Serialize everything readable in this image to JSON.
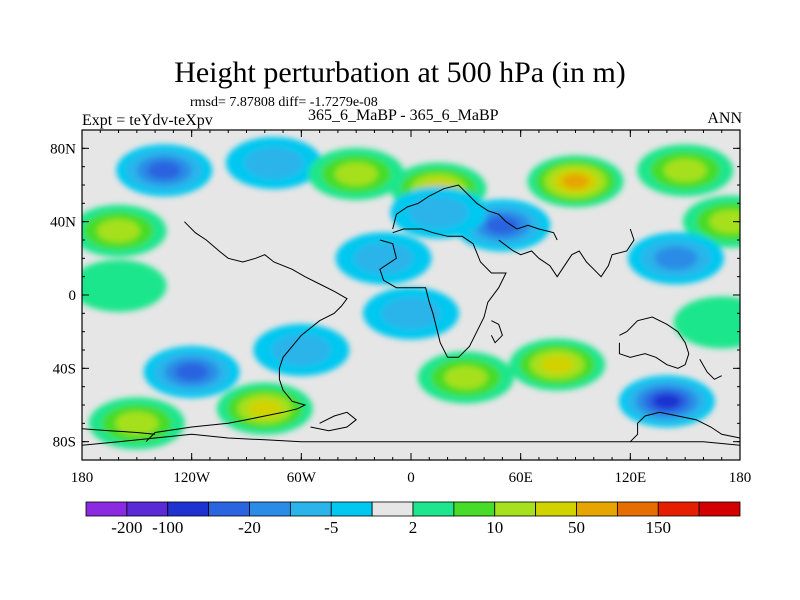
{
  "title": "Height perturbation at 500 hPa (in m)",
  "stats": "rmsd= 7.87808 diff= -1.7279e-08",
  "experiment": "Expt = teYdv-teXpv",
  "case_label": "365_6_MaBP - 365_6_MaBP",
  "season": "ANN",
  "colors": {
    "background_field": "#e6e6e6",
    "coastline": "#000000"
  },
  "chart_data": {
    "type": "heatmap",
    "title": "Height perturbation at 500 hPa (in m)",
    "projection": "cylindrical-equidistant",
    "xlim": [
      -180,
      180
    ],
    "ylim": [
      -90,
      90
    ],
    "x_ticks": [
      {
        "value": -180,
        "label": "180"
      },
      {
        "value": -120,
        "label": "120W"
      },
      {
        "value": -60,
        "label": "60W"
      },
      {
        "value": 0,
        "label": "0"
      },
      {
        "value": 60,
        "label": "60E"
      },
      {
        "value": 120,
        "label": "120E"
      },
      {
        "value": 180,
        "label": "180"
      }
    ],
    "y_ticks": [
      {
        "value": 80,
        "label": "80N"
      },
      {
        "value": 40,
        "label": "40N"
      },
      {
        "value": 0,
        "label": "0"
      },
      {
        "value": -40,
        "label": "40S"
      },
      {
        "value": -80,
        "label": "80S"
      }
    ],
    "colorbar": {
      "levels": [
        -200,
        -100,
        -50,
        -20,
        -10,
        -5,
        -2,
        2,
        5,
        10,
        20,
        50,
        100,
        150,
        200
      ],
      "labeled_levels": [
        "-200",
        "-100",
        "-20",
        "-5",
        "2",
        "10",
        "50",
        "150"
      ],
      "colors": [
        "#8a2be2",
        "#5a2ad6",
        "#1e32d2",
        "#2a64e0",
        "#2a8ce6",
        "#2ab4ea",
        "#00c8f0",
        "#e6e6e6",
        "#1ee68c",
        "#46dc28",
        "#a6e01e",
        "#d2d200",
        "#e6a500",
        "#e66e00",
        "#e61e00",
        "#d20000"
      ]
    },
    "anomalies": [
      {
        "lon": -135,
        "lat": 68,
        "value": -40
      },
      {
        "lon": -75,
        "lat": 72,
        "value": -5
      },
      {
        "lon": -30,
        "lat": 66,
        "value": 10
      },
      {
        "lon": 15,
        "lat": 58,
        "value": 30
      },
      {
        "lon": 90,
        "lat": 62,
        "value": 60
      },
      {
        "lon": 150,
        "lat": 68,
        "value": 10
      },
      {
        "lon": 175,
        "lat": 40,
        "value": 10
      },
      {
        "lon": -160,
        "lat": 35,
        "value": 10
      },
      {
        "lon": 50,
        "lat": 38,
        "value": -30
      },
      {
        "lon": 15,
        "lat": 45,
        "value": -5
      },
      {
        "lon": 145,
        "lat": 20,
        "value": -10
      },
      {
        "lon": -15,
        "lat": 20,
        "value": -5
      },
      {
        "lon": 0,
        "lat": -10,
        "value": -5
      },
      {
        "lon": -120,
        "lat": -42,
        "value": -20
      },
      {
        "lon": -60,
        "lat": -30,
        "value": -5
      },
      {
        "lon": 80,
        "lat": -38,
        "value": 40
      },
      {
        "lon": 30,
        "lat": -45,
        "value": 10
      },
      {
        "lon": 140,
        "lat": -58,
        "value": -60
      },
      {
        "lon": -80,
        "lat": -62,
        "value": 40
      },
      {
        "lon": -150,
        "lat": -70,
        "value": 10
      },
      {
        "lon": -160,
        "lat": 5,
        "value": 2
      },
      {
        "lon": 170,
        "lat": -15,
        "value": 3
      }
    ]
  }
}
